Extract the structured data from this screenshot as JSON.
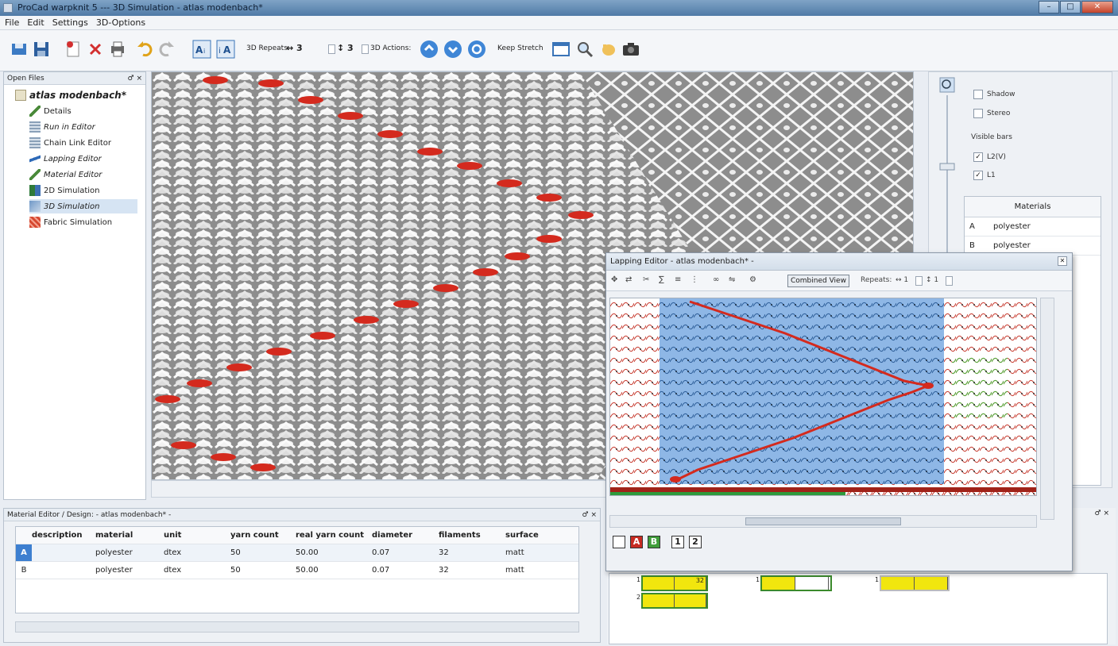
{
  "window": {
    "title": "ProCad warpknit 5 --- 3D Simulation - atlas modenbach*",
    "buttons": [
      "–",
      "□",
      "✕"
    ]
  },
  "menu": [
    "File",
    "Edit",
    "Settings",
    "3D-Options"
  ],
  "toolbar": {
    "repeats_label": "3D Repeats:",
    "repeat_h": "↔ 3",
    "repeat_v": "↕ 3",
    "actions_label": "3D Actions:",
    "keep_stretch": "Keep Stretch"
  },
  "open_files": {
    "title": "Open Files",
    "controls": "♂ ×",
    "root": "atlas modenbach*",
    "items": [
      "Details",
      "Run in Editor",
      "Chain Link Editor",
      "Lapping Editor",
      "Material Editor",
      "2D Simulation",
      "3D Simulation",
      "Fabric Simulation"
    ]
  },
  "right_panel": {
    "shadow": "Shadow",
    "stereo": "Stereo",
    "visible_bars": "Visible bars",
    "bars": [
      "L2(V)",
      "L1"
    ],
    "materials_title": "Materials",
    "materials": [
      {
        "key": "A",
        "name": "polyester"
      },
      {
        "key": "B",
        "name": "polyester"
      }
    ]
  },
  "lapping_editor": {
    "title": "Lapping Editor - atlas modenbach* -",
    "combined_view": "Combined View",
    "repeats_label": "Repeats:",
    "repeat_h": "↔ 1",
    "repeat_v": "↕ 1",
    "legend": [
      "A",
      "B",
      "1",
      "2"
    ]
  },
  "material_editor": {
    "title": "Material Editor / Design: - atlas modenbach* -",
    "columns": [
      "",
      "description",
      "material",
      "unit",
      "yarn count",
      "real yarn count",
      "diameter",
      "filaments",
      "surface"
    ],
    "rows": [
      [
        "A",
        "",
        "polyester",
        "dtex",
        "50",
        "50.00",
        "0.07",
        "32",
        "matt"
      ],
      [
        "B",
        "",
        "polyester",
        "dtex",
        "50",
        "50.00",
        "0.07",
        "32",
        "matt"
      ]
    ]
  },
  "chains": {
    "first_value": "32",
    "labels": [
      "1",
      "1",
      "1",
      "2"
    ]
  },
  "colors": {
    "yarn_red": "#d42a1e",
    "yarn_green": "#4caf3a",
    "lapping_blue": "#8eb7e6",
    "chain_yellow": "#f1e60e"
  }
}
